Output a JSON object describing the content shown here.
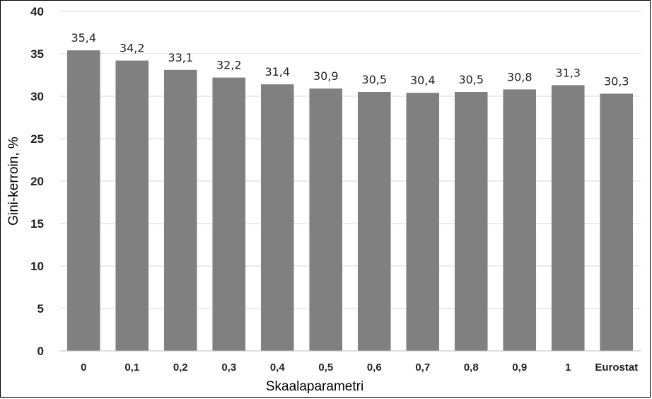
{
  "chart_data": {
    "type": "bar",
    "categories": [
      "0",
      "0,1",
      "0,2",
      "0,3",
      "0,4",
      "0,5",
      "0,6",
      "0,7",
      "0,8",
      "0,9",
      "1",
      "Eurostat"
    ],
    "values": [
      35.4,
      34.2,
      33.1,
      32.2,
      31.4,
      30.9,
      30.5,
      30.4,
      30.5,
      30.8,
      31.3,
      30.3
    ],
    "value_labels": [
      "35,4",
      "34,2",
      "33,1",
      "32,2",
      "31,4",
      "30,9",
      "30,5",
      "30,4",
      "30,5",
      "30,8",
      "31,3",
      "30,3"
    ],
    "xlabel": "Skaalaparametri",
    "ylabel": "Gini-kerroin, %",
    "ylim": [
      0,
      40
    ],
    "yticks": [
      0,
      5,
      10,
      15,
      20,
      25,
      30,
      35,
      40
    ],
    "grid": true,
    "legend": "none",
    "bar_color": "#808080",
    "grid_color": "#d9d9d9"
  }
}
